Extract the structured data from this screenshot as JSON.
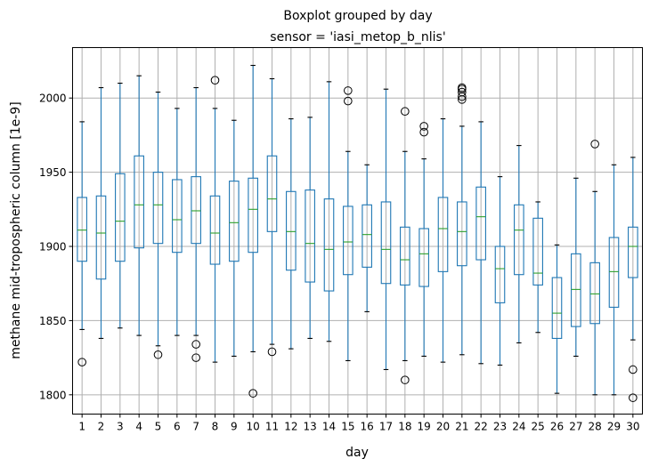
{
  "chart_data": {
    "type": "boxplot",
    "title": "Boxplot grouped by day",
    "subtitle": "sensor = 'iasi_metop_b_nlis'",
    "xlabel": "day",
    "ylabel": "methane mid-tropospheric column [1e-9]",
    "ylim": [
      1787,
      2034
    ],
    "yticks": [
      1800,
      1850,
      1900,
      1950,
      2000
    ],
    "grid": true,
    "colors": {
      "box": "#1f77b4",
      "median": "#2ca02c",
      "whisker": "#1f77b4",
      "cap": "#000000",
      "flier": "#000000",
      "grid": "#b0b0b0"
    },
    "categories": [
      "1",
      "2",
      "3",
      "4",
      "5",
      "6",
      "7",
      "8",
      "9",
      "10",
      "11",
      "12",
      "13",
      "14",
      "15",
      "16",
      "17",
      "18",
      "19",
      "20",
      "21",
      "22",
      "23",
      "24",
      "25",
      "26",
      "27",
      "28",
      "29",
      "30"
    ],
    "boxes": [
      {
        "day": "1",
        "whislo": 1844,
        "q1": 1890,
        "med": 1911,
        "q3": 1933,
        "whishi": 1984,
        "fliers": [
          1822
        ]
      },
      {
        "day": "2",
        "whislo": 1838,
        "q1": 1878,
        "med": 1909,
        "q3": 1934,
        "whishi": 2007,
        "fliers": []
      },
      {
        "day": "3",
        "whislo": 1845,
        "q1": 1890,
        "med": 1917,
        "q3": 1949,
        "whishi": 2010,
        "fliers": []
      },
      {
        "day": "4",
        "whislo": 1840,
        "q1": 1899,
        "med": 1928,
        "q3": 1961,
        "whishi": 2015,
        "fliers": []
      },
      {
        "day": "5",
        "whislo": 1833,
        "q1": 1902,
        "med": 1928,
        "q3": 1950,
        "whishi": 2004,
        "fliers": [
          1827
        ]
      },
      {
        "day": "6",
        "whislo": 1840,
        "q1": 1896,
        "med": 1918,
        "q3": 1945,
        "whishi": 1993,
        "fliers": []
      },
      {
        "day": "7",
        "whislo": 1840,
        "q1": 1902,
        "med": 1924,
        "q3": 1947,
        "whishi": 2007,
        "fliers": [
          1834,
          1825
        ]
      },
      {
        "day": "8",
        "whislo": 1822,
        "q1": 1888,
        "med": 1909,
        "q3": 1934,
        "whishi": 1993,
        "fliers": [
          2012
        ]
      },
      {
        "day": "9",
        "whislo": 1826,
        "q1": 1890,
        "med": 1916,
        "q3": 1944,
        "whishi": 1985,
        "fliers": []
      },
      {
        "day": "10",
        "whislo": 1829,
        "q1": 1896,
        "med": 1925,
        "q3": 1946,
        "whishi": 2022,
        "fliers": [
          1801
        ]
      },
      {
        "day": "11",
        "whislo": 1834,
        "q1": 1910,
        "med": 1932,
        "q3": 1961,
        "whishi": 2013,
        "fliers": [
          1829
        ]
      },
      {
        "day": "12",
        "whislo": 1831,
        "q1": 1884,
        "med": 1910,
        "q3": 1937,
        "whishi": 1986,
        "fliers": []
      },
      {
        "day": "13",
        "whislo": 1838,
        "q1": 1876,
        "med": 1902,
        "q3": 1938,
        "whishi": 1987,
        "fliers": []
      },
      {
        "day": "14",
        "whislo": 1836,
        "q1": 1870,
        "med": 1898,
        "q3": 1932,
        "whishi": 2011,
        "fliers": []
      },
      {
        "day": "15",
        "whislo": 1823,
        "q1": 1881,
        "med": 1903,
        "q3": 1927,
        "whishi": 1964,
        "fliers": [
          2005,
          1998
        ]
      },
      {
        "day": "16",
        "whislo": 1856,
        "q1": 1886,
        "med": 1908,
        "q3": 1928,
        "whishi": 1955,
        "fliers": []
      },
      {
        "day": "17",
        "whislo": 1817,
        "q1": 1875,
        "med": 1898,
        "q3": 1930,
        "whishi": 2006,
        "fliers": []
      },
      {
        "day": "18",
        "whislo": 1823,
        "q1": 1874,
        "med": 1891,
        "q3": 1913,
        "whishi": 1964,
        "fliers": [
          1991,
          1810
        ]
      },
      {
        "day": "19",
        "whislo": 1826,
        "q1": 1873,
        "med": 1895,
        "q3": 1912,
        "whishi": 1959,
        "fliers": [
          1981,
          1977
        ]
      },
      {
        "day": "20",
        "whislo": 1822,
        "q1": 1883,
        "med": 1912,
        "q3": 1933,
        "whishi": 1986,
        "fliers": []
      },
      {
        "day": "21",
        "whislo": 1827,
        "q1": 1887,
        "med": 1910,
        "q3": 1930,
        "whishi": 1981,
        "fliers": [
          2007,
          2006,
          2004,
          2001,
          1999
        ]
      },
      {
        "day": "22",
        "whislo": 1821,
        "q1": 1891,
        "med": 1920,
        "q3": 1940,
        "whishi": 1984,
        "fliers": []
      },
      {
        "day": "23",
        "whislo": 1820,
        "q1": 1862,
        "med": 1885,
        "q3": 1900,
        "whishi": 1947,
        "fliers": []
      },
      {
        "day": "24",
        "whislo": 1835,
        "q1": 1881,
        "med": 1911,
        "q3": 1928,
        "whishi": 1968,
        "fliers": []
      },
      {
        "day": "25",
        "whislo": 1842,
        "q1": 1874,
        "med": 1882,
        "q3": 1919,
        "whishi": 1930,
        "fliers": []
      },
      {
        "day": "26",
        "whislo": 1801,
        "q1": 1838,
        "med": 1855,
        "q3": 1879,
        "whishi": 1901,
        "fliers": []
      },
      {
        "day": "27",
        "whislo": 1826,
        "q1": 1846,
        "med": 1871,
        "q3": 1895,
        "whishi": 1946,
        "fliers": []
      },
      {
        "day": "28",
        "whislo": 1800,
        "q1": 1848,
        "med": 1868,
        "q3": 1889,
        "whishi": 1937,
        "fliers": [
          1969
        ]
      },
      {
        "day": "29",
        "whislo": 1800,
        "q1": 1859,
        "med": 1883,
        "q3": 1906,
        "whishi": 1955,
        "fliers": []
      },
      {
        "day": "30",
        "whislo": 1837,
        "q1": 1879,
        "med": 1900,
        "q3": 1913,
        "whishi": 1960,
        "fliers": [
          1817,
          1798
        ]
      }
    ]
  }
}
